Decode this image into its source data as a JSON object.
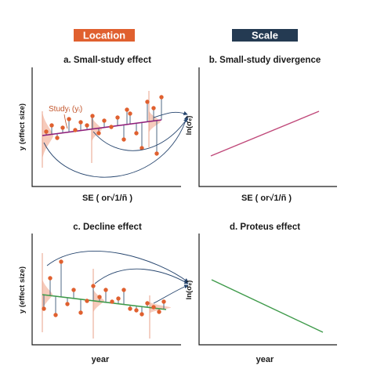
{
  "headers": {
    "location": {
      "label": "Location",
      "color": "#e0602f"
    },
    "scale": {
      "label": "Scale",
      "color": "#243a52"
    }
  },
  "panels": {
    "a": {
      "title": "a. Small-study effect",
      "xlabel": "SE ( or√1/ñ )",
      "ylabel": "y (effect size)",
      "annotation": "Studyᵢ (yᵢ)",
      "trend_color": "#8e1f7a"
    },
    "b": {
      "title": "b. Small-study divergence",
      "xlabel": "SE ( or√1/ñ )",
      "ylabel": "ln(σₑ)",
      "line_color": "#c0497a"
    },
    "c": {
      "title": "c. Decline effect",
      "xlabel": "year",
      "ylabel": "y (effect size)",
      "trend_color": "#3e9a4a"
    },
    "d": {
      "title": "d. Proteus effect",
      "xlabel": "year",
      "ylabel": "ln(σₑ)",
      "line_color": "#3e9a4a"
    }
  },
  "colors": {
    "points": "#e0602f",
    "residual": "#3c5a78",
    "density": "#f3b9a5",
    "guide": "#e8a08a",
    "arrow": "#26456e"
  }
}
